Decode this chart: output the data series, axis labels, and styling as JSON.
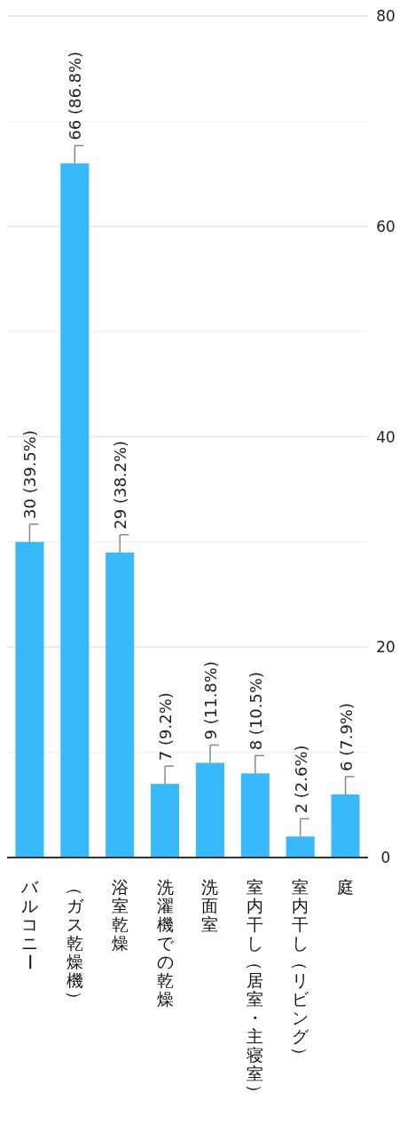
{
  "chart_data": {
    "type": "bar",
    "categories": [
      "バルコニー",
      "（ガス乾燥機）",
      "浴室乾燥",
      "洗濯機での乾燥",
      "洗面室",
      "室内干し（居室・主寝室）",
      "室内干し（リビング）",
      "庭"
    ],
    "values": [
      30,
      66,
      29,
      7,
      9,
      8,
      2,
      6
    ],
    "value_labels": [
      "30 (39.5%)",
      "66 (86.8%)",
      "29 (38.2%)",
      "7 (9.2%)",
      "9 (11.8%)",
      "8 (10.5%)",
      "2 (2.6%)",
      "6 (7.9%)"
    ],
    "color": "#38b9fb",
    "ylim": [
      0,
      80
    ],
    "yticks": [
      0,
      {
        "value": 10,
        "label": null
      },
      20,
      {
        "value": 30,
        "label": null
      },
      40,
      {
        "value": 50,
        "label": null
      },
      60,
      {
        "value": 70,
        "label": null
      },
      80
    ],
    "grid": "y"
  }
}
